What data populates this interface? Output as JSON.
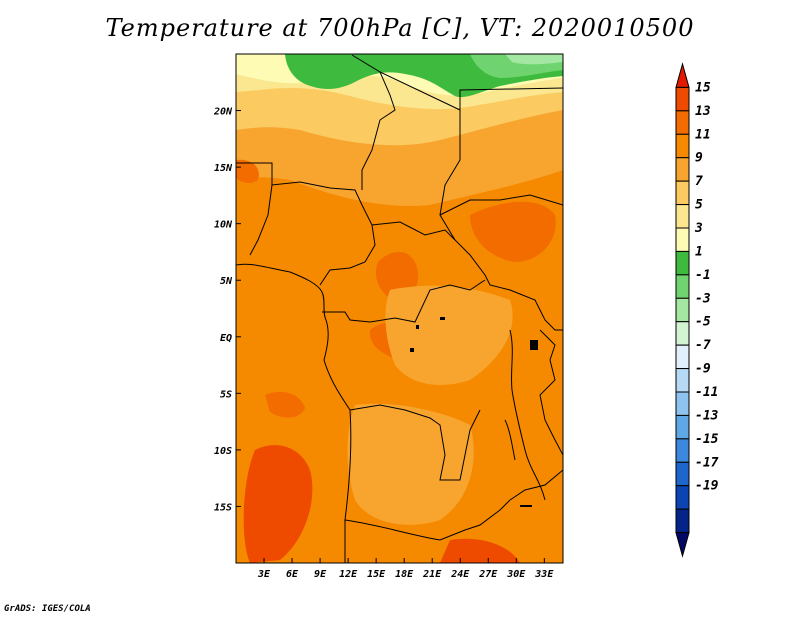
{
  "title": "Temperature at 700hPa [C], VT: 2020010500",
  "credit": "GrADS: IGES/COLA",
  "map": {
    "lon_range": [
      0,
      35
    ],
    "lat_range": [
      -20,
      25
    ],
    "x_ticks": [
      "3E",
      "6E",
      "9E",
      "12E",
      "15E",
      "18E",
      "21E",
      "24E",
      "27E",
      "30E",
      "33E"
    ],
    "x_tick_values": [
      3,
      6,
      9,
      12,
      15,
      18,
      21,
      24,
      27,
      30,
      33
    ],
    "y_ticks": [
      "20N",
      "15N",
      "10N",
      "5N",
      "EQ",
      "5S",
      "10S",
      "15S"
    ],
    "y_tick_values": [
      20,
      15,
      10,
      5,
      0,
      -5,
      -10,
      -15
    ]
  },
  "colorbar": {
    "labels": [
      "15",
      "13",
      "11",
      "9",
      "7",
      "5",
      "3",
      "1",
      "-1",
      "-3",
      "-5",
      "-7",
      "-9",
      "-11",
      "-13",
      "-15",
      "-17",
      "-19"
    ],
    "colors": [
      "#e41a00",
      "#ee4a00",
      "#f26c00",
      "#f58a00",
      "#f8a530",
      "#fbcb62",
      "#fbe78f",
      "#fdfbb4",
      "#3ebb3e",
      "#6fd46f",
      "#a3e7a3",
      "#d2f4d2",
      "#e1f0fb",
      "#b6daf6",
      "#8ec3ef",
      "#5fa8e6",
      "#3c88dd",
      "#1f66cc",
      "#0d44b4",
      "#05248a",
      "#000864"
    ]
  },
  "chart_data": {
    "type": "heatmap",
    "title": "Temperature at 700hPa [C], VT: 2020010500",
    "variable": "Temperature at 700hPa",
    "units": "C",
    "valid_time": "2020010500",
    "lon_range": [
      0,
      35
    ],
    "lat_range": [
      -20,
      25
    ],
    "color_levels": [
      -19,
      -17,
      -15,
      -13,
      -11,
      -9,
      -7,
      -5,
      -3,
      -1,
      1,
      3,
      5,
      7,
      9,
      11,
      13,
      15
    ],
    "regions": [
      {
        "area": "northern edge ~23-25N",
        "value_range": [
          1,
          5
        ]
      },
      {
        "area": "Sahel 15-20N",
        "value_range": [
          5,
          9
        ]
      },
      {
        "area": "central Africa 10N-15S",
        "value_range": [
          9,
          11
        ]
      },
      {
        "area": "Gulf of Guinea / Atlantic",
        "value_range": [
          9,
          11
        ]
      },
      {
        "area": "Sudan / S Sudan, Congo basin hot spots",
        "value_range": [
          11,
          13
        ]
      },
      {
        "area": "Angola / Zambia highlands",
        "value_range": [
          7,
          9
        ]
      }
    ]
  }
}
